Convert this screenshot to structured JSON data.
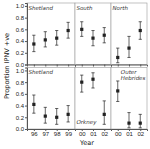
{
  "chart_data": [
    {
      "type": "scatter",
      "title": "Shetland",
      "ylabel": "Proportion IPNV +ve",
      "x": [
        1996,
        1997,
        1998,
        1999
      ],
      "values": [
        0.35,
        0.42,
        0.45,
        0.58
      ],
      "ci_lo": [
        0.22,
        0.3,
        0.33,
        0.45
      ],
      "ci_hi": [
        0.5,
        0.56,
        0.58,
        0.72
      ],
      "xlim": [
        1995.4,
        1999.6
      ],
      "ylim": [
        0,
        1.05
      ],
      "xticks": [
        1996,
        1997,
        1998,
        1999
      ],
      "yticks": [
        {
          "value": 0.0,
          "label": "0.0"
        },
        0.2,
        0.4,
        0.6,
        0.8,
        {
          "value": 1.0,
          "label": "1.0"
        }
      ],
      "tick_labels": "y",
      "color": "#222222",
      "marker": "square"
    },
    {
      "type": "scatter",
      "title": "South",
      "x": [
        2000,
        2001,
        2002
      ],
      "values": [
        0.6,
        0.45,
        0.5
      ],
      "ci_lo": [
        0.48,
        0.32,
        0.37
      ],
      "ci_hi": [
        0.73,
        0.58,
        0.63
      ],
      "xlim": [
        1999.4,
        2002.6
      ],
      "ylim": [
        0,
        1.05
      ],
      "xticks": [
        2000,
        2001,
        2002
      ],
      "tick_labels": false,
      "color": "#222222",
      "marker": "square"
    },
    {
      "type": "scatter",
      "title": "North",
      "x": [
        2000,
        2001,
        2002
      ],
      "values": [
        0.12,
        0.28,
        0.58
      ],
      "ci_lo": [
        0.03,
        0.12,
        0.43
      ],
      "ci_hi": [
        0.28,
        0.48,
        0.73
      ],
      "xlim": [
        1999.4,
        2002.6
      ],
      "ylim": [
        0,
        1.05
      ],
      "xticks": [
        2000,
        2001,
        2002
      ],
      "tick_labels": false,
      "color": "#222222",
      "marker": "square"
    },
    {
      "type": "scatter",
      "title": "Shetland",
      "x": [
        1996,
        1997,
        1998,
        1999
      ],
      "values": [
        0.42,
        0.22,
        0.2,
        0.25
      ],
      "ci_lo": [
        0.27,
        0.1,
        0.08,
        0.12
      ],
      "ci_hi": [
        0.58,
        0.37,
        0.35,
        0.4
      ],
      "xlim": [
        1995.4,
        1999.6
      ],
      "ylim": [
        0,
        1.05
      ],
      "xticks": [
        {
          "value": 1996,
          "label": "96"
        },
        {
          "value": 1997,
          "label": "97"
        },
        {
          "value": 1998,
          "label": "98"
        },
        {
          "value": 1999,
          "label": "99"
        }
      ],
      "yticks": [
        {
          "value": 0.0,
          "label": "0.0"
        },
        0.2,
        0.4,
        0.6,
        0.8,
        {
          "value": 1.0,
          "label": "1.0"
        }
      ],
      "color": "#222222",
      "marker": "square"
    },
    {
      "type": "scatter",
      "title": "Orkney",
      "xlabel": "Year",
      "x": [
        2000,
        2001,
        2002
      ],
      "values": [
        0.8,
        0.85,
        0.25
      ],
      "ci_lo": [
        0.63,
        0.7,
        0.08
      ],
      "ci_hi": [
        0.92,
        0.96,
        0.48
      ],
      "xlim": [
        1999.4,
        2002.6
      ],
      "ylim": [
        0,
        1.05
      ],
      "xticks": [
        {
          "value": 2000,
          "label": "00"
        },
        {
          "value": 2001,
          "label": "01"
        },
        {
          "value": 2002,
          "label": "02"
        }
      ],
      "tick_labels": "x",
      "color": "#222222",
      "marker": "square"
    },
    {
      "type": "scatter",
      "title": "Outer\nHebrides",
      "x": [
        2000,
        2001,
        2002
      ],
      "values": [
        0.65,
        0.1,
        0.1
      ],
      "ci_lo": [
        0.47,
        0.02,
        0.02
      ],
      "ci_hi": [
        0.82,
        0.28,
        0.25
      ],
      "xlim": [
        1999.4,
        2002.6
      ],
      "ylim": [
        0,
        1.05
      ],
      "xticks": [
        {
          "value": 2000,
          "label": "00"
        },
        {
          "value": 2001,
          "label": "01"
        },
        {
          "value": 2002,
          "label": "02"
        }
      ],
      "tick_labels": "x",
      "color": "#222222",
      "marker": "square"
    }
  ]
}
